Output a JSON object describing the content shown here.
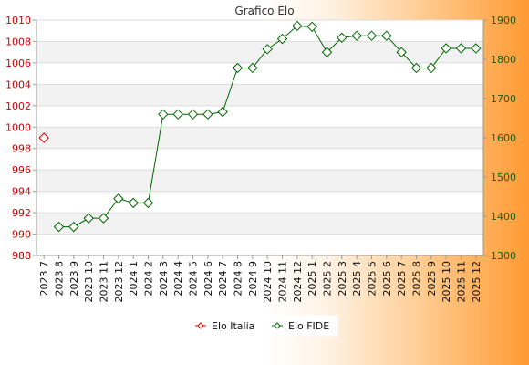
{
  "chart_data": {
    "type": "line",
    "title": "Grafico Elo",
    "categories": [
      "2023 7",
      "2023 8",
      "2023 9",
      "2023 10",
      "2023 11",
      "2023 12",
      "2024 1",
      "2024 2",
      "2024 3",
      "2024 4",
      "2024 5",
      "2024 6",
      "2024 7",
      "2024 8",
      "2024 9",
      "2024 10",
      "2024 11",
      "2024 12",
      "2025 1",
      "2025 2",
      "2025 3",
      "2025 4",
      "2025 5",
      "2025 6",
      "2025 7",
      "2025 8",
      "2025 9",
      "2025 10",
      "2025 11",
      "2025 12"
    ],
    "y_left": {
      "ticks": [
        "988",
        "990",
        "992",
        "994",
        "996",
        "998",
        "1000",
        "1002",
        "1004",
        "1006",
        "1008",
        "1010"
      ],
      "ylim": [
        988,
        1010
      ]
    },
    "y_right": {
      "ticks": [
        "1300",
        "1400",
        "1500",
        "1600",
        "1700",
        "1800",
        "1900"
      ],
      "ylim": [
        1300,
        1900
      ]
    },
    "series": [
      {
        "name": "Elo Italia",
        "axis": "left",
        "color": "#dd0000",
        "marker": "diamond",
        "values": [
          999,
          null,
          null,
          null,
          null,
          null,
          null,
          null,
          null,
          null,
          null,
          null,
          null,
          null,
          null,
          null,
          null,
          null,
          null,
          null,
          null,
          null,
          null,
          null,
          null,
          null,
          null,
          null,
          null,
          null
        ]
      },
      {
        "name": "Elo FIDE",
        "axis": "right",
        "color": "#006600",
        "marker": "diamond",
        "values": [
          null,
          1373,
          1373,
          1395,
          1395,
          1445,
          1434,
          1434,
          1660,
          1660,
          1660,
          1660,
          1666,
          1778,
          1778,
          1826,
          1852,
          1885,
          1883,
          1818,
          1855,
          1860,
          1860,
          1860,
          1818,
          1778,
          1778,
          1828,
          1828,
          1828
        ]
      }
    ],
    "grid": true,
    "legend_position": "bottom"
  }
}
